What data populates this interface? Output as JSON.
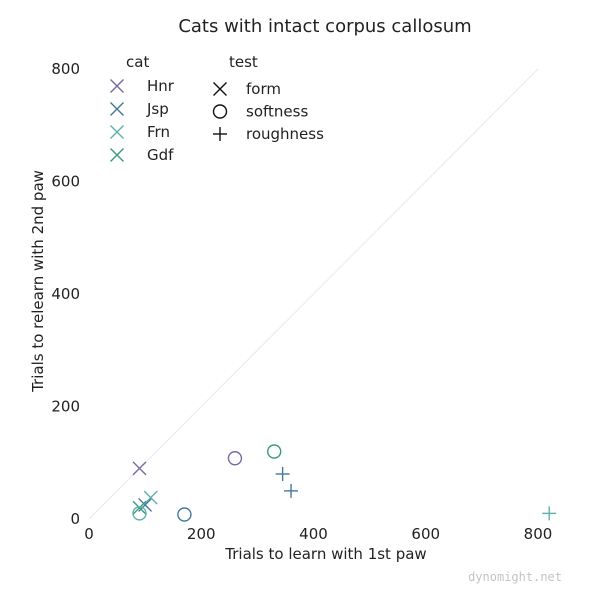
{
  "chart_data": {
    "type": "scatter",
    "title": "Cats with intact corpus callosum",
    "xlabel": "Trials to learn with 1st paw",
    "ylabel": "Trials to relearn with 2nd paw",
    "xlim": [
      0,
      850
    ],
    "ylim": [
      0,
      850
    ],
    "xticks": [
      0,
      200,
      400,
      600,
      800
    ],
    "yticks": [
      0,
      200,
      400,
      600,
      800
    ],
    "grid": false,
    "diagonal_reference_line": true,
    "legend_cat": {
      "title": "cat",
      "entries": [
        {
          "label": "Hnr",
          "color": "#7a6a9e"
        },
        {
          "label": "Jsp",
          "color": "#44799e"
        },
        {
          "label": "Frn",
          "color": "#5fb0ab"
        },
        {
          "label": "Gdf",
          "color": "#3e9a7c"
        }
      ]
    },
    "legend_test": {
      "title": "test",
      "entries": [
        {
          "label": "form",
          "marker": "x"
        },
        {
          "label": "softness",
          "marker": "o"
        },
        {
          "label": "roughness",
          "marker": "+"
        }
      ]
    },
    "points": [
      {
        "cat": "Hnr",
        "test": "form",
        "x": 90,
        "y": 90
      },
      {
        "cat": "Jsp",
        "test": "form",
        "x": 100,
        "y": 25
      },
      {
        "cat": "Frn",
        "test": "form",
        "x": 110,
        "y": 38
      },
      {
        "cat": "Gdf",
        "test": "form",
        "x": 90,
        "y": 20
      },
      {
        "cat": "Hnr",
        "test": "softness",
        "x": 260,
        "y": 108
      },
      {
        "cat": "Jsp",
        "test": "softness",
        "x": 170,
        "y": 8
      },
      {
        "cat": "Frn",
        "test": "softness",
        "x": 90,
        "y": 10
      },
      {
        "cat": "Gdf",
        "test": "softness",
        "x": 330,
        "y": 120
      },
      {
        "cat": "Jsp",
        "test": "roughness",
        "x": 345,
        "y": 80
      },
      {
        "cat": "Jsp",
        "test": "roughness",
        "x": 360,
        "y": 50
      },
      {
        "cat": "Frn",
        "test": "roughness",
        "x": 820,
        "y": 10
      }
    ]
  },
  "watermark": "dynomight.net"
}
